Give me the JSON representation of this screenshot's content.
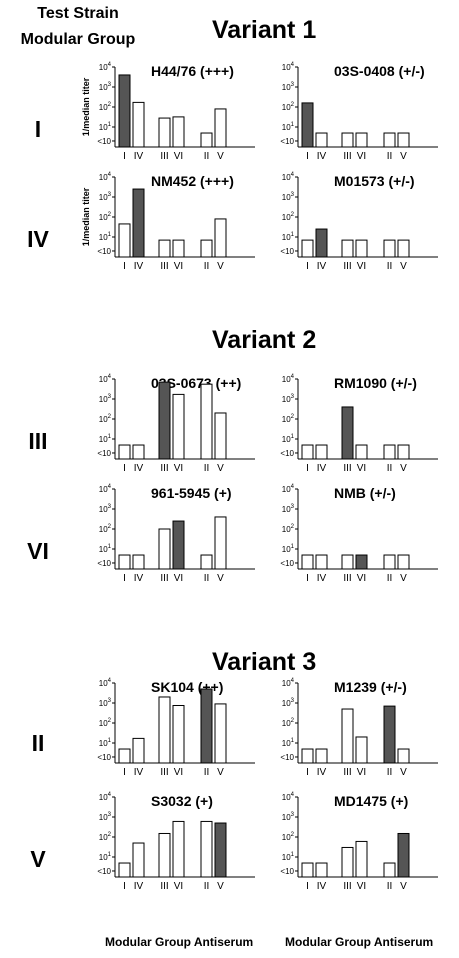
{
  "header": {
    "line1": "Test Strain",
    "line2": "Modular Group"
  },
  "variants": [
    "Variant 1",
    "Variant 2",
    "Variant 3"
  ],
  "rows": [
    "I",
    "IV",
    "III",
    "VI",
    "II",
    "V"
  ],
  "x_axis_title": "Modular Group Antiserum",
  "y_axis_label": "1/median titer",
  "y_ticks": [
    "10^4",
    "10^3",
    "10^2",
    "10^1",
    "<10"
  ],
  "colors": {
    "homologous": "#555555",
    "heterologous": "#ffffff",
    "outline": "#000000"
  },
  "chart_data": [
    {
      "type": "bar",
      "title": "H44/76 (+++)",
      "categories": [
        "I",
        "IV",
        "III",
        "VI",
        "II",
        "V"
      ],
      "values": [
        4000,
        170,
        28,
        32,
        5,
        80
      ],
      "highlight": "I",
      "ylim": [
        1,
        10000
      ],
      "yscale": "log",
      "ylabel": "1/median titer"
    },
    {
      "type": "bar",
      "title": "03S-0408 (+/-)",
      "categories": [
        "I",
        "IV",
        "III",
        "VI",
        "II",
        "V"
      ],
      "values": [
        160,
        5,
        5,
        5,
        5,
        5
      ],
      "highlight": "I",
      "ylim": [
        1,
        10000
      ],
      "yscale": "log",
      "ylabel": ""
    },
    {
      "type": "bar",
      "title": "NM452 (+++)",
      "categories": [
        "I",
        "IV",
        "III",
        "VI",
        "II",
        "V"
      ],
      "values": [
        45,
        2500,
        7,
        7,
        7,
        80
      ],
      "highlight": "IV",
      "ylim": [
        1,
        10000
      ],
      "yscale": "log",
      "ylabel": "1/median titer"
    },
    {
      "type": "bar",
      "title": "M01573 (+/-)",
      "categories": [
        "I",
        "IV",
        "III",
        "VI",
        "II",
        "V"
      ],
      "values": [
        7,
        25,
        7,
        7,
        7,
        7
      ],
      "highlight": "IV",
      "ylim": [
        1,
        10000
      ],
      "yscale": "log",
      "ylabel": ""
    },
    {
      "type": "bar",
      "title": "03S-0673 (++)",
      "categories": [
        "I",
        "IV",
        "III",
        "VI",
        "II",
        "V"
      ],
      "values": [
        5,
        5,
        7000,
        1700,
        5500,
        200
      ],
      "highlight": "III",
      "ylim": [
        1,
        10000
      ],
      "yscale": "log",
      "ylabel": ""
    },
    {
      "type": "bar",
      "title": "RM1090 (+/-)",
      "categories": [
        "I",
        "IV",
        "III",
        "VI",
        "II",
        "V"
      ],
      "values": [
        5,
        5,
        400,
        5,
        5,
        5
      ],
      "highlight": "III",
      "ylim": [
        1,
        10000
      ],
      "yscale": "log",
      "ylabel": ""
    },
    {
      "type": "bar",
      "title": "961-5945 (+)",
      "categories": [
        "I",
        "IV",
        "III",
        "VI",
        "II",
        "V"
      ],
      "values": [
        5,
        5,
        100,
        250,
        5,
        400
      ],
      "highlight": "VI",
      "ylim": [
        1,
        10000
      ],
      "yscale": "log",
      "ylabel": ""
    },
    {
      "type": "bar",
      "title": "NMB (+/-)",
      "categories": [
        "I",
        "IV",
        "III",
        "VI",
        "II",
        "V"
      ],
      "values": [
        5,
        5,
        5,
        5,
        5,
        5
      ],
      "highlight": "VI",
      "ylim": [
        1,
        10000
      ],
      "yscale": "log",
      "ylabel": ""
    },
    {
      "type": "bar",
      "title": "SK104 (++)",
      "categories": [
        "I",
        "IV",
        "III",
        "VI",
        "II",
        "V"
      ],
      "values": [
        5,
        17,
        2000,
        750,
        5000,
        900
      ],
      "highlight": "II",
      "ylim": [
        1,
        10000
      ],
      "yscale": "log",
      "ylabel": ""
    },
    {
      "type": "bar",
      "title": "M1239 (+/-)",
      "categories": [
        "I",
        "IV",
        "III",
        "VI",
        "II",
        "V"
      ],
      "values": [
        5,
        5,
        500,
        20,
        700,
        5
      ],
      "highlight": "II",
      "ylim": [
        1,
        10000
      ],
      "yscale": "log",
      "ylabel": ""
    },
    {
      "type": "bar",
      "title": "S3032 (+)",
      "categories": [
        "I",
        "IV",
        "III",
        "VI",
        "II",
        "V"
      ],
      "values": [
        5,
        50,
        150,
        600,
        600,
        500
      ],
      "highlight": "V",
      "ylim": [
        1,
        10000
      ],
      "yscale": "log",
      "ylabel": ""
    },
    {
      "type": "bar",
      "title": "MD1475 (+)",
      "categories": [
        "I",
        "IV",
        "III",
        "VI",
        "II",
        "V"
      ],
      "values": [
        5,
        5,
        30,
        60,
        5,
        150
      ],
      "highlight": "V",
      "ylim": [
        1,
        10000
      ],
      "yscale": "log",
      "ylabel": ""
    }
  ]
}
